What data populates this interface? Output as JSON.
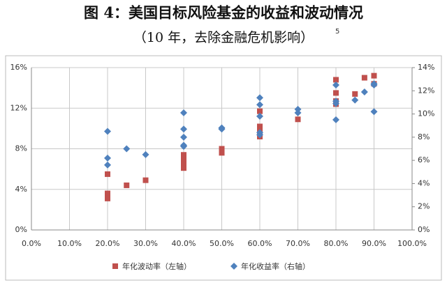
{
  "chart_data": {
    "type": "scatter",
    "title": "图 4：美国目标风险基金的收益和波动情况",
    "subtitle": "（10 年，去除金融危机影响）",
    "footnote_mark": "5",
    "xlim": [
      0,
      100
    ],
    "xticks": [
      {
        "value": 0,
        "label": "0.0%"
      },
      {
        "value": 10,
        "label": "10.0%"
      },
      {
        "value": 20,
        "label": "20.0%"
      },
      {
        "value": 30,
        "label": "30.0%"
      },
      {
        "value": 40,
        "label": "40.0%"
      },
      {
        "value": 50,
        "label": "50.0%"
      },
      {
        "value": 60,
        "label": "60.0%"
      },
      {
        "value": 70,
        "label": "70.0%"
      },
      {
        "value": 80,
        "label": "80.0%"
      },
      {
        "value": 90,
        "label": "90.0%"
      },
      {
        "value": 100,
        "label": "100.0%"
      }
    ],
    "ylim": [
      0,
      16
    ],
    "yticks": [
      {
        "value": 0,
        "label": "0%"
      },
      {
        "value": 4,
        "label": "4%"
      },
      {
        "value": 8,
        "label": "8%"
      },
      {
        "value": 12,
        "label": "12%"
      },
      {
        "value": 16,
        "label": "16%"
      }
    ],
    "y2lim": [
      0,
      14
    ],
    "y2ticks": [
      {
        "value": 0,
        "label": "0%"
      },
      {
        "value": 2,
        "label": "2%"
      },
      {
        "value": 4,
        "label": "4%"
      },
      {
        "value": 6,
        "label": "6%"
      },
      {
        "value": 8,
        "label": "8%"
      },
      {
        "value": 10,
        "label": "10%"
      },
      {
        "value": 12,
        "label": "12%"
      },
      {
        "value": 14,
        "label": "14%"
      }
    ],
    "grid": true,
    "legend": "bottom",
    "series": [
      {
        "name": "年化波动率（左轴）",
        "color": "#c0504d",
        "marker": "square",
        "x": [
          20,
          20,
          20,
          25,
          30,
          40,
          40,
          40,
          40,
          50,
          50,
          60,
          60,
          60,
          60,
          70,
          80,
          80,
          80,
          80,
          85,
          87.5,
          90,
          90
        ],
        "values": [
          5.5,
          3.6,
          3.1,
          4.4,
          4.9,
          7.4,
          6.9,
          6.5,
          6.1,
          8.0,
          7.6,
          11.7,
          10.2,
          9.7,
          9.2,
          10.9,
          14.8,
          13.5,
          12.7,
          12.4,
          13.4,
          15.0,
          15.2,
          14.4
        ]
      },
      {
        "name": "年化收益率（右轴）",
        "color": "#4f81bd",
        "marker": "diamond",
        "axis": "y2",
        "x": [
          20,
          20,
          20,
          25,
          30,
          40,
          40,
          40,
          40,
          40,
          50,
          50,
          60,
          60,
          60,
          60,
          60,
          70,
          70,
          80,
          80,
          80,
          80,
          85,
          87.5,
          90,
          90,
          90
        ],
        "values": [
          8.5,
          6.2,
          5.6,
          7.0,
          6.5,
          10.1,
          8.7,
          8.0,
          7.3,
          7.2,
          8.8,
          8.7,
          11.4,
          10.8,
          9.8,
          8.4,
          8.2,
          10.4,
          10.1,
          12.5,
          11.1,
          10.9,
          9.5,
          11.2,
          11.9,
          12.6,
          12.5,
          10.2
        ]
      }
    ]
  }
}
